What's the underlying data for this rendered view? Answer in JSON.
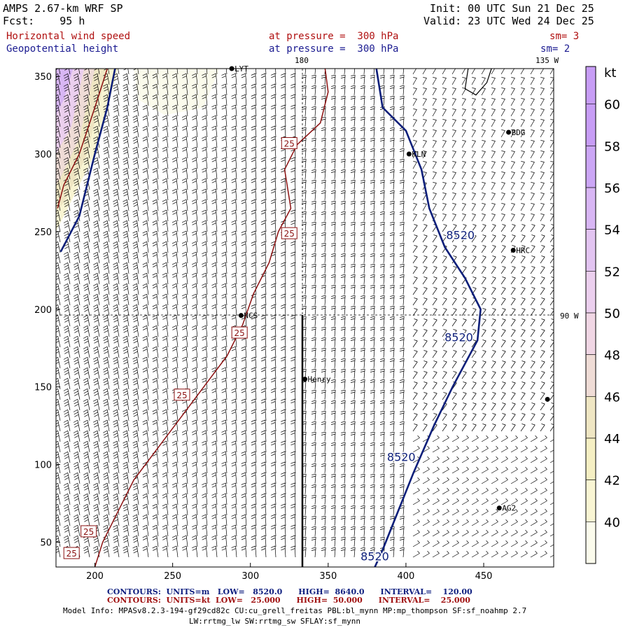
{
  "header": {
    "model": "AMPS 2.67-km WRF SP",
    "fcst": "Fcst:    95 h",
    "init": "Init: 00 UTC Sun 21 Dec 25",
    "valid": "Valid: 23 UTC Wed 24 Dec 25",
    "field1": "Horizontal wind speed",
    "field2": "Geopotential height",
    "level1": "at pressure =  300 hPa",
    "level2": "at pressure =  300 hPa",
    "sm1": "sm= 3",
    "sm2": "sm= 2"
  },
  "map_labels": {
    "lon_180": "180",
    "lon_135w": "135 W",
    "lon_90w": "90 W"
  },
  "stations": [
    {
      "name": "LYT",
      "x": 288,
      "y": 355
    },
    {
      "name": "BDG",
      "x": 466,
      "y": 314
    },
    {
      "name": "KLN",
      "x": 402,
      "y": 300
    },
    {
      "name": "HRC",
      "x": 469,
      "y": 238
    },
    {
      "name": "NCS",
      "x": 294,
      "y": 196
    },
    {
      "name": "Henry",
      "x": 335,
      "y": 155
    },
    {
      "name": "AG2",
      "x": 460,
      "y": 72
    },
    {
      "name": "",
      "x": 491,
      "y": 142
    }
  ],
  "footer": {
    "blue_line": "CONTOURS:  UNITS=m   LOW=   8520.0      HIGH=  8640.0      INTERVAL=    120.00",
    "red_line": "CONTOURS:  UNITS=kt  LOW=   25.000      HIGH=  50.000      INTERVAL=    25.000",
    "model_info": "Model Info: MPASv8.2.3-194-gf29cd82c CU:cu_grell_freitas PBL:bl_mynn MP:mp_thompson SF:sf_noahmp 2.7",
    "model_info2": "LW:rrtmg_lw SW:rrtmg_sw SFLAY:sf_mynn"
  },
  "chart_data": {
    "type": "contour-map",
    "title": "Horizontal wind speed / Geopotential height at 300 hPa",
    "xlabel": "",
    "ylabel": "",
    "xlim": [
      175,
      495
    ],
    "ylim": [
      34,
      355
    ],
    "xticks": [
      200,
      250,
      300,
      350,
      400,
      450
    ],
    "yticks": [
      50,
      100,
      150,
      200,
      250,
      300,
      350
    ],
    "colorbar": {
      "unit": "kt",
      "levels": [
        40,
        42,
        44,
        46,
        48,
        50,
        52,
        54,
        56,
        58,
        60
      ],
      "colors": [
        "#fbfbec",
        "#f9f5d3",
        "#f5efc3",
        "#efe6c3",
        "#efdcd6",
        "#f0d6e4",
        "#ebcfee",
        "#e2c4f1",
        "#d8b6f4",
        "#cba6f5",
        "#c79df5"
      ]
    },
    "height_contours_m": [
      {
        "label": "8520",
        "points": [
          [
            213,
            355
          ],
          [
            208,
            330
          ],
          [
            200,
            300
          ],
          [
            190,
            260
          ],
          [
            178,
            237
          ]
        ]
      },
      {
        "label": "8520",
        "points": [
          [
            381,
            355
          ],
          [
            385,
            330
          ],
          [
            400,
            315
          ],
          [
            410,
            290
          ],
          [
            415,
            265
          ],
          [
            425,
            240
          ],
          [
            438,
            220
          ],
          [
            448,
            200
          ],
          [
            446,
            180
          ],
          [
            430,
            150
          ],
          [
            418,
            125
          ],
          [
            405,
            95
          ],
          [
            395,
            70
          ],
          [
            385,
            45
          ],
          [
            380,
            34
          ]
        ]
      }
    ],
    "wind_speed_contours_kt": [
      {
        "label": "25",
        "points": [
          [
            208,
            355
          ],
          [
            200,
            330
          ],
          [
            190,
            300
          ],
          [
            180,
            280
          ],
          [
            176,
            265
          ]
        ]
      },
      {
        "label": "25",
        "points": [
          [
            348,
            355
          ],
          [
            350,
            340
          ],
          [
            345,
            320
          ],
          [
            330,
            306
          ],
          [
            322,
            290
          ],
          [
            326,
            265
          ],
          [
            318,
            250
          ],
          [
            312,
            230
          ],
          [
            302,
            210
          ],
          [
            295,
            190
          ],
          [
            285,
            170
          ],
          [
            270,
            150
          ],
          [
            255,
            130
          ],
          [
            240,
            110
          ],
          [
            225,
            90
          ],
          [
            215,
            70
          ],
          [
            205,
            50
          ],
          [
            200,
            34
          ]
        ]
      }
    ],
    "wind_barbs": "grid of barbs, mostly northerly flow, ~10-25 kt"
  }
}
